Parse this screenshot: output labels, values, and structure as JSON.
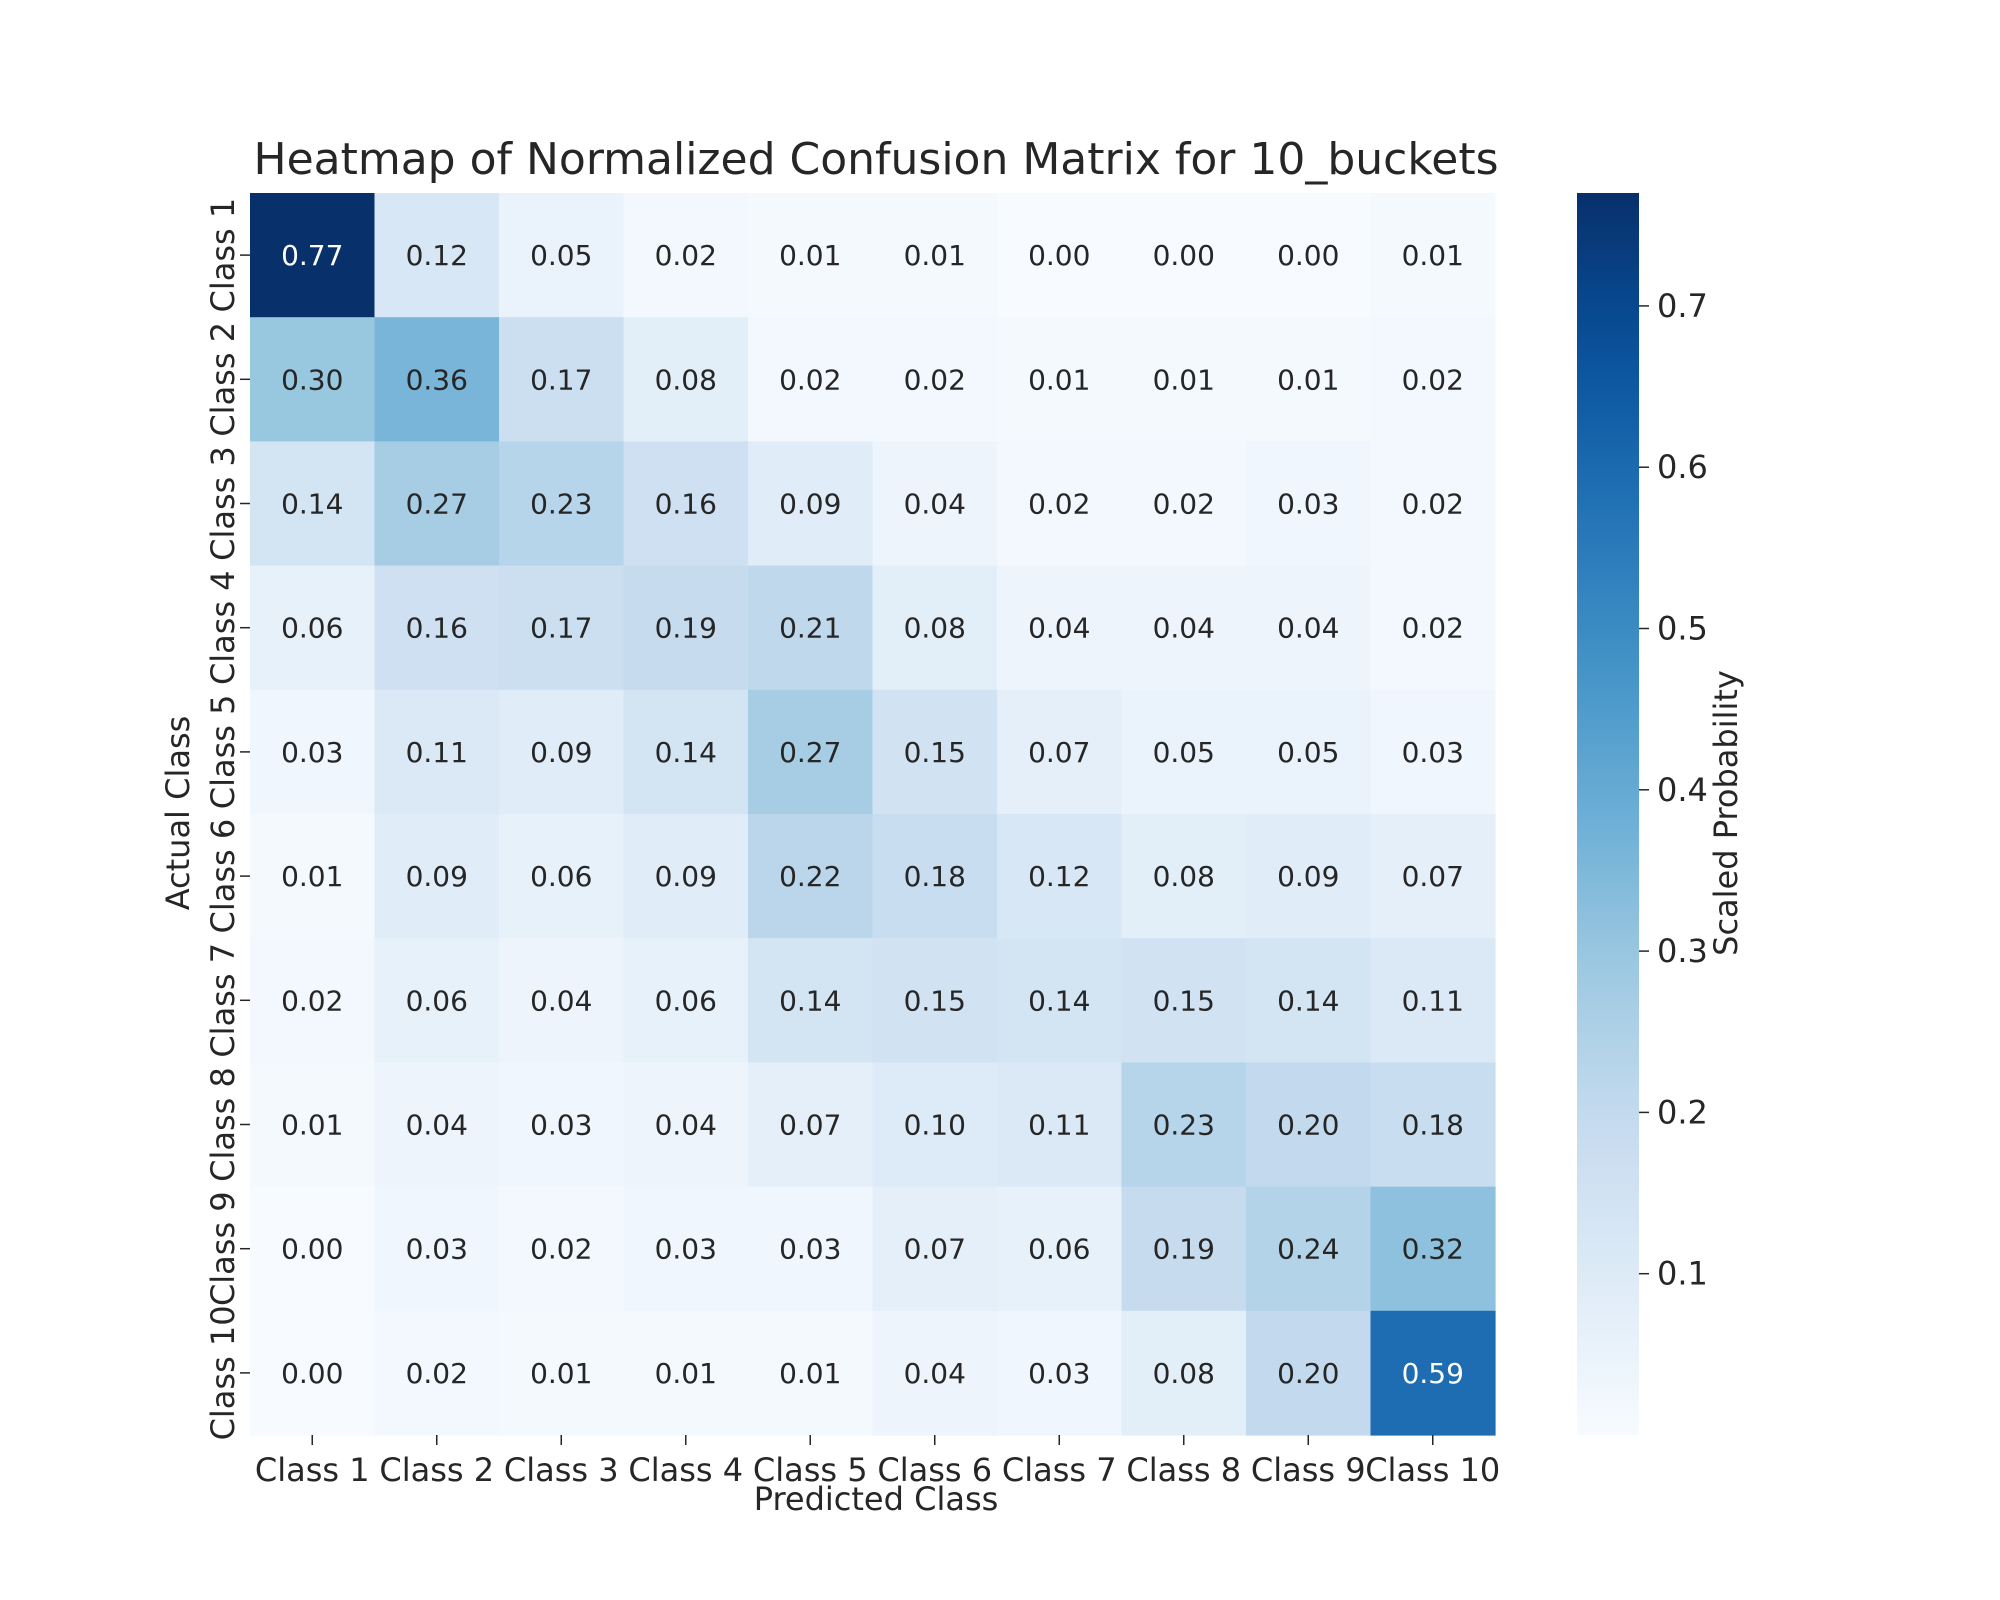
{
  "chart_data": {
    "type": "heatmap",
    "title": "Heatmap of Normalized Confusion Matrix for 10_buckets",
    "xlabel": "Predicted Class",
    "ylabel": "Actual Class",
    "x_categories": [
      "Class 1",
      "Class 2",
      "Class 3",
      "Class 4",
      "Class 5",
      "Class 6",
      "Class 7",
      "Class 8",
      "Class 9",
      "Class 10"
    ],
    "y_categories": [
      "Class 1",
      "Class 2",
      "Class 3",
      "Class 4",
      "Class 5",
      "Class 6",
      "Class 7",
      "Class 8",
      "Class 9",
      "Class 10"
    ],
    "values": [
      [
        0.77,
        0.12,
        0.05,
        0.02,
        0.01,
        0.01,
        0.0,
        0.0,
        0.0,
        0.01
      ],
      [
        0.3,
        0.36,
        0.17,
        0.08,
        0.02,
        0.02,
        0.01,
        0.01,
        0.01,
        0.02
      ],
      [
        0.14,
        0.27,
        0.23,
        0.16,
        0.09,
        0.04,
        0.02,
        0.02,
        0.03,
        0.02
      ],
      [
        0.06,
        0.16,
        0.17,
        0.19,
        0.21,
        0.08,
        0.04,
        0.04,
        0.04,
        0.02
      ],
      [
        0.03,
        0.11,
        0.09,
        0.14,
        0.27,
        0.15,
        0.07,
        0.05,
        0.05,
        0.03
      ],
      [
        0.01,
        0.09,
        0.06,
        0.09,
        0.22,
        0.18,
        0.12,
        0.08,
        0.09,
        0.07
      ],
      [
        0.02,
        0.06,
        0.04,
        0.06,
        0.14,
        0.15,
        0.14,
        0.15,
        0.14,
        0.11
      ],
      [
        0.01,
        0.04,
        0.03,
        0.04,
        0.07,
        0.1,
        0.11,
        0.23,
        0.2,
        0.18
      ],
      [
        0.0,
        0.03,
        0.02,
        0.03,
        0.03,
        0.07,
        0.06,
        0.19,
        0.24,
        0.32
      ],
      [
        0.0,
        0.02,
        0.01,
        0.01,
        0.01,
        0.04,
        0.03,
        0.08,
        0.2,
        0.59
      ]
    ],
    "value_format": "2 decimals",
    "colormap": "Blues",
    "colorbar": {
      "label": "Scaled Probability",
      "range": [
        0.0,
        0.77
      ],
      "ticks": [
        0.1,
        0.2,
        0.3,
        0.4,
        0.5,
        0.6,
        0.7
      ],
      "tick_labels": [
        "0.1",
        "0.2",
        "0.3",
        "0.4",
        "0.5",
        "0.6",
        "0.7"
      ]
    }
  }
}
